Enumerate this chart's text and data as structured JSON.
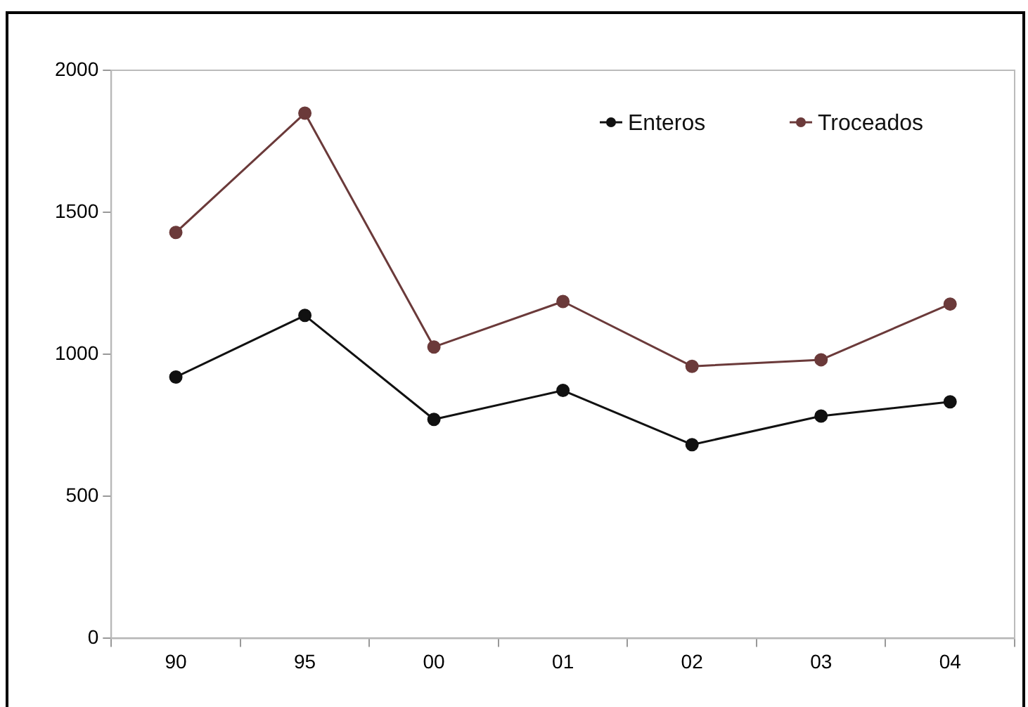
{
  "chart_data": {
    "type": "line",
    "categories": [
      "90",
      "95",
      "00",
      "01",
      "02",
      "03",
      "04"
    ],
    "series": [
      {
        "name": "Enteros",
        "color": "#111111",
        "values": [
          920,
          1137,
          771,
          873,
          682,
          783,
          833
        ]
      },
      {
        "name": "Troceados",
        "color": "#6b3a3a",
        "values": [
          1429,
          1849,
          1026,
          1186,
          958,
          981,
          1177
        ]
      }
    ],
    "ylim": [
      0,
      2000
    ],
    "yticks": [
      0,
      500,
      1000,
      1500,
      2000
    ],
    "grid": false,
    "legend": "top right",
    "marker": "circle",
    "line_style": "solid"
  }
}
